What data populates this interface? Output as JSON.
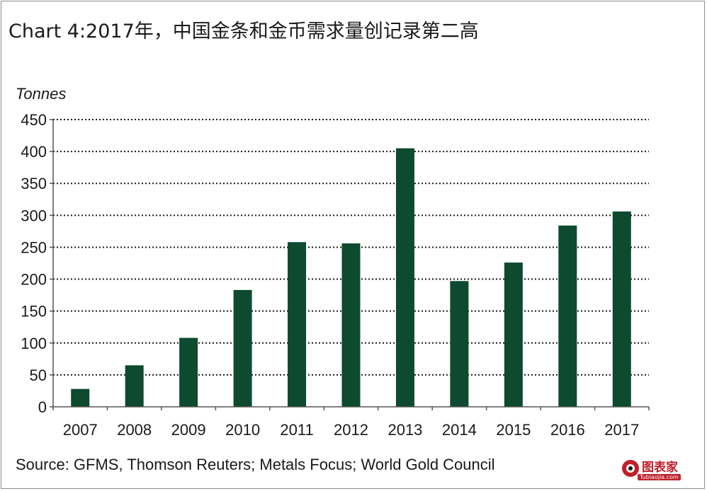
{
  "title": "Chart 4:2017年，中国金条和金币需求量创记录第二高",
  "source": "Source: GFMS, Thomson Reuters; Metals Focus; World Gold Council",
  "watermark": {
    "text": "图表家",
    "subtext": "Tubiaojia.com",
    "icon": "brand-logo-icon",
    "color": "#c0202a"
  },
  "colors": {
    "bar": "#0d4a2f",
    "grid": "#1a1a1a",
    "text": "#1a1a1a"
  },
  "chart_data": {
    "type": "bar",
    "title": "Chart 4:2017年，中国金条和金币需求量创记录第二高",
    "xlabel": "",
    "ylabel": "Tonnes",
    "categories": [
      "2007",
      "2008",
      "2009",
      "2010",
      "2011",
      "2012",
      "2013",
      "2014",
      "2015",
      "2016",
      "2017"
    ],
    "values": [
      28,
      65,
      108,
      183,
      258,
      256,
      405,
      197,
      226,
      284,
      306
    ],
    "ylim": [
      0,
      450
    ],
    "yticks": [
      0,
      50,
      100,
      150,
      200,
      250,
      300,
      350,
      400,
      450
    ],
    "grid": "horizontal dotted",
    "legend": "none"
  }
}
